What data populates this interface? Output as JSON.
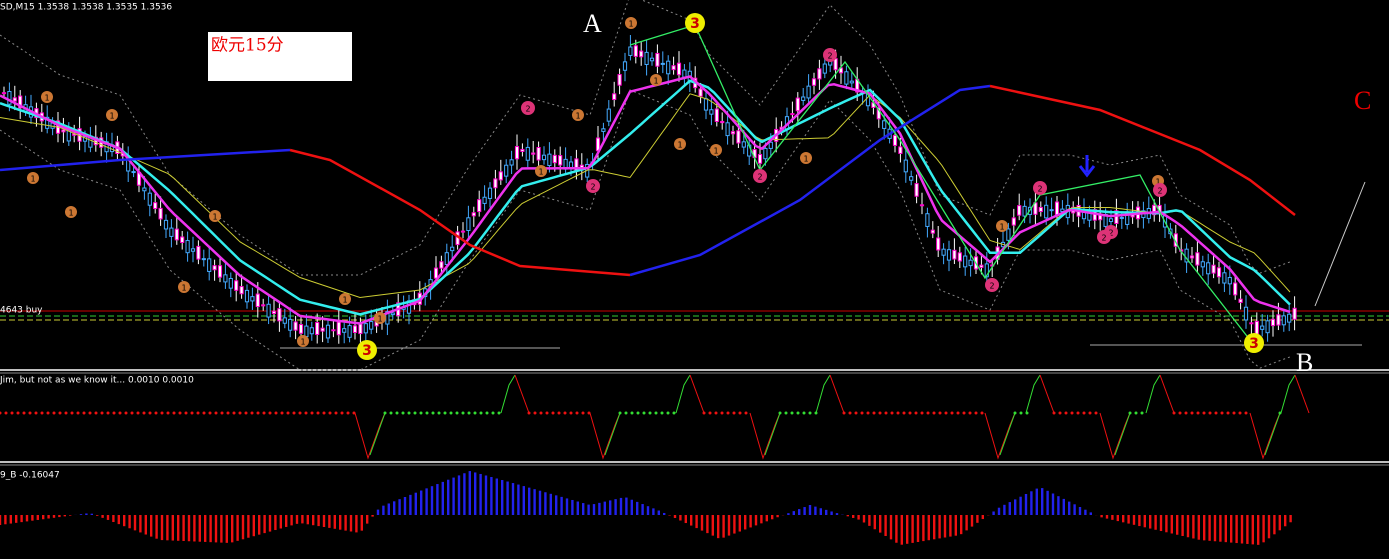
{
  "header": "SD,M15  1.3538 1.3538 1.3535 1.3536",
  "title_box": "欧元15分",
  "wave_labels": [
    "A",
    "B",
    "C"
  ],
  "wave_counts": [
    "3",
    "3",
    "3"
  ],
  "order_line": "4643 buy",
  "indicator1": "Jim, but not as we know it...  0.0010 0.0010",
  "indicator2": "9_B -0.16047",
  "markers": [
    "1",
    "1",
    "1",
    "1",
    "1",
    "1",
    "1",
    "1",
    "1",
    "1",
    "1",
    "2",
    "1",
    "1",
    "1",
    "2",
    "2",
    "1",
    "1",
    "2",
    "2",
    "1",
    "2",
    "2",
    "2",
    "1",
    "2"
  ]
}
